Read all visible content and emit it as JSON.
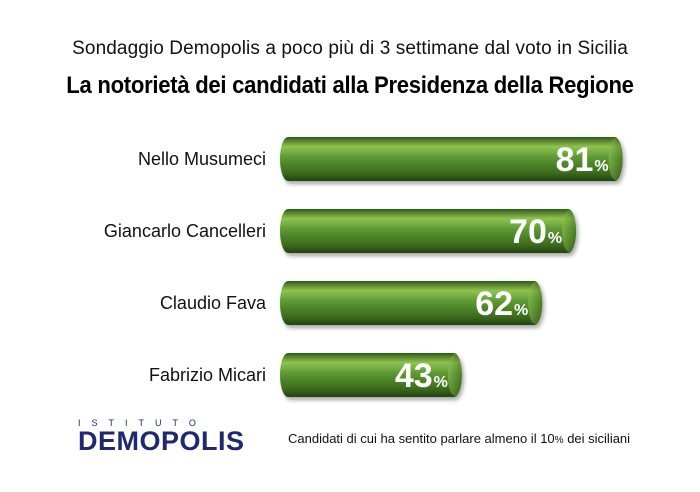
{
  "header": {
    "subtitle": "Sondaggio Demopolis a poco più di 3 settimane dal voto in Sicilia",
    "title": "La notorietà dei candidati alla Presidenza della Regione"
  },
  "chart_data": {
    "type": "bar",
    "orientation": "horizontal",
    "title": "La notorietà dei candidati alla Presidenza della Regione",
    "categories": [
      "Nello Musumeci",
      "Giancarlo Cancelleri",
      "Claudio Fava",
      "Fabrizio Micari"
    ],
    "values": [
      81,
      70,
      62,
      43
    ],
    "value_suffix": "%",
    "xlim": [
      0,
      100
    ],
    "grid": false,
    "legend": "none",
    "colors": {
      "bar": "#4e8a2a",
      "bar_light": "#8fc450",
      "bar_dark": "#2f5a17"
    }
  },
  "footer": {
    "logo_top": "ISTITUTO",
    "logo_name": "DEMOPOLIS",
    "note_before": "Candidati di cui ha sentito parlare almeno il 10",
    "note_percent": "%",
    "note_after": " dei siciliani"
  }
}
